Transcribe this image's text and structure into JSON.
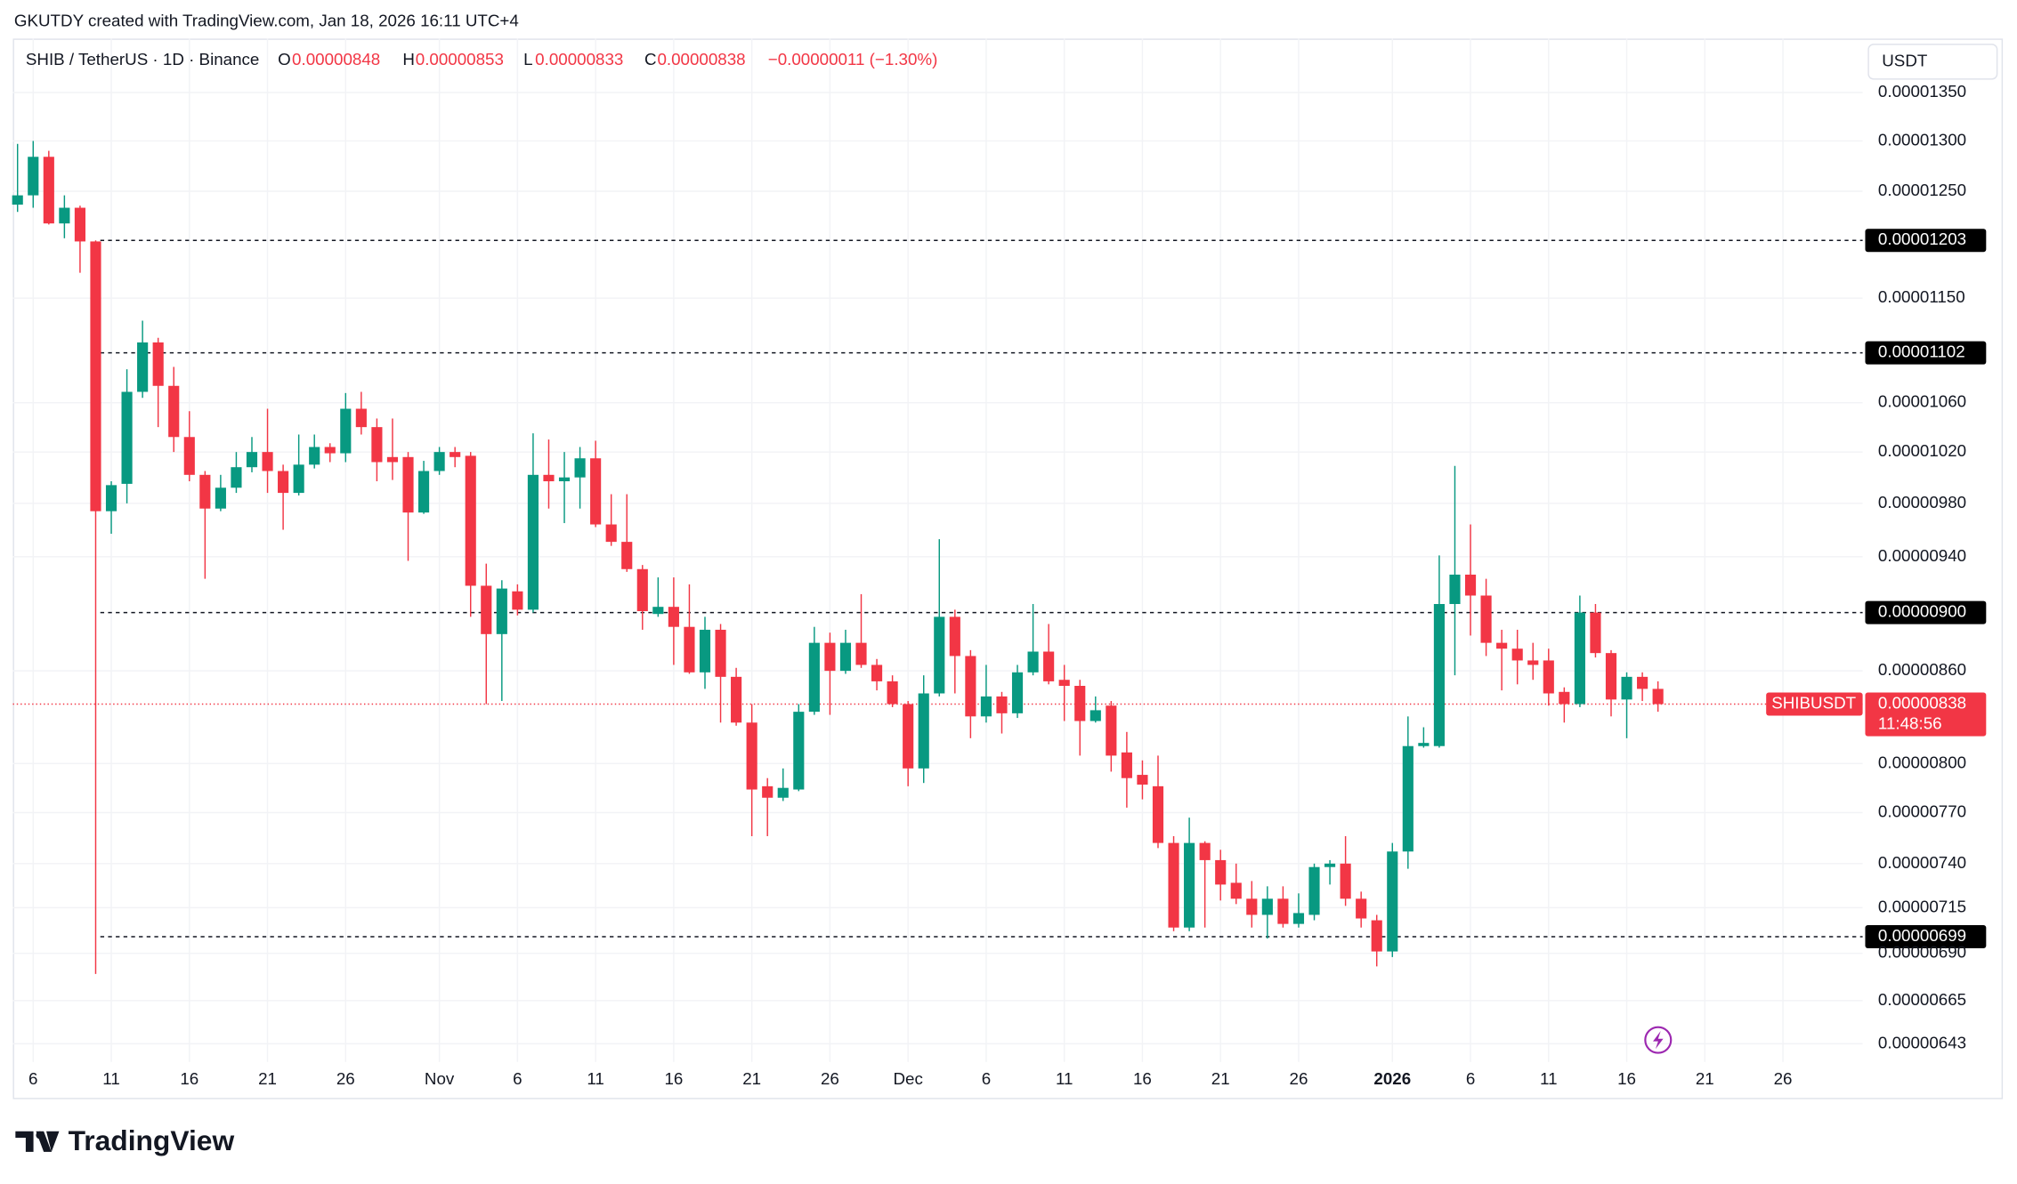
{
  "header": {
    "credit": "GKUTDY created with TradingView.com, Jan 18, 2026 16:11 UTC+4",
    "symbol": "SHIB / TetherUS · 1D · Binance",
    "o_label": "O",
    "o_value": "0.00000848",
    "h_label": "H",
    "h_value": "0.00000853",
    "l_label": "L",
    "l_value": "0.00000833",
    "c_label": "C",
    "c_value": "0.00000838",
    "change": "−0.00000011 (−1.30%)",
    "currency": "USDT"
  },
  "footer": {
    "brand": "TradingView"
  },
  "chart_data": {
    "type": "candlestick",
    "log_scale": true,
    "grid": true,
    "up_color": "#089981",
    "down_color": "#f23645",
    "xlim": [
      -0.3,
      118.1
    ],
    "ylim": [
      6.34e-06,
      1.408e-05
    ],
    "xticks": [
      {
        "value": 1,
        "label": "6"
      },
      {
        "value": 6,
        "label": "11"
      },
      {
        "value": 11,
        "label": "16"
      },
      {
        "value": 16,
        "label": "21"
      },
      {
        "value": 21,
        "label": "26"
      },
      {
        "value": 27,
        "label": "Nov"
      },
      {
        "value": 32,
        "label": "6"
      },
      {
        "value": 37,
        "label": "11"
      },
      {
        "value": 42,
        "label": "16"
      },
      {
        "value": 47,
        "label": "21"
      },
      {
        "value": 52,
        "label": "26"
      },
      {
        "value": 57,
        "label": "Dec"
      },
      {
        "value": 62,
        "label": "6"
      },
      {
        "value": 67,
        "label": "11"
      },
      {
        "value": 72,
        "label": "16"
      },
      {
        "value": 77,
        "label": "21"
      },
      {
        "value": 82,
        "label": "26"
      },
      {
        "value": 88,
        "label": "2026",
        "bold": true
      },
      {
        "value": 93,
        "label": "6"
      },
      {
        "value": 98,
        "label": "11"
      },
      {
        "value": 103,
        "label": "16"
      },
      {
        "value": 108,
        "label": "21"
      },
      {
        "value": 113,
        "label": "26"
      }
    ],
    "yticks": [
      {
        "value": 1.35e-05,
        "label": "0.00001350"
      },
      {
        "value": 1.3e-05,
        "label": "0.00001300"
      },
      {
        "value": 1.25e-05,
        "label": "0.00001250"
      },
      {
        "value": 1.15e-05,
        "label": "0.00001150"
      },
      {
        "value": 1.06e-05,
        "label": "0.00001060"
      },
      {
        "value": 1.02e-05,
        "label": "0.00001020"
      },
      {
        "value": 9.8e-06,
        "label": "0.00000980"
      },
      {
        "value": 9.4e-06,
        "label": "0.00000940"
      },
      {
        "value": 8.6e-06,
        "label": "0.00000860"
      },
      {
        "value": 8e-06,
        "label": "0.00000800"
      },
      {
        "value": 7.7e-06,
        "label": "0.00000770"
      },
      {
        "value": 7.4e-06,
        "label": "0.00000740"
      },
      {
        "value": 7.15e-06,
        "label": "0.00000715"
      },
      {
        "value": 6.9e-06,
        "label": "0.00000690"
      },
      {
        "value": 6.65e-06,
        "label": "0.00000665"
      },
      {
        "value": 6.43e-06,
        "label": "0.00000643"
      }
    ],
    "levels": [
      {
        "value": 1.203e-05,
        "label": "0.00001203"
      },
      {
        "value": 1.102e-05,
        "label": "0.00001102"
      },
      {
        "value": 9e-06,
        "label": "0.00000900"
      },
      {
        "value": 6.99e-06,
        "label": "0.00000699"
      }
    ],
    "last_price": {
      "value": 8.38e-06,
      "label": "0.00000838",
      "symbol": "SHIBUSDT",
      "countdown": "11:48:56"
    },
    "open": [
      1.237e-05,
      1.246e-05,
      1.284e-05,
      1.219e-05,
      1.234e-05,
      1.202e-05,
      9.74e-06,
      9.95e-06,
      1.069e-05,
      1.111e-05,
      1.074e-05,
      1.032e-05,
      1.002e-05,
      9.76e-06,
      9.92e-06,
      1.008e-05,
      1.02e-05,
      1.005e-05,
      9.88e-06,
      1.01e-05,
      1.024e-05,
      1.019e-05,
      1.055e-05,
      1.04e-05,
      1.016e-05,
      1.016e-05,
      9.73e-06,
      1.005e-05,
      1.02e-05,
      1.017e-05,
      9.19e-06,
      8.85e-06,
      9.15e-06,
      9.02e-06,
      1.002e-05,
      9.97e-06,
      1e-05,
      1.015e-05,
      9.64e-06,
      9.51e-06,
      9.31e-06,
      8.99e-06,
      9.04e-06,
      8.9e-06,
      8.59e-06,
      8.88e-06,
      8.56e-06,
      8.26e-06,
      7.86e-06,
      7.79e-06,
      7.84e-06,
      8.33e-06,
      8.79e-06,
      8.6e-06,
      8.79e-06,
      8.64e-06,
      8.53e-06,
      8.38e-06,
      7.97e-06,
      8.45e-06,
      8.97e-06,
      8.7e-06,
      8.3e-06,
      8.43e-06,
      8.32e-06,
      8.59e-06,
      8.73e-06,
      8.54e-06,
      8.5e-06,
      8.27e-06,
      8.37e-06,
      8.07e-06,
      7.93e-06,
      7.86e-06,
      7.52e-06,
      7.04e-06,
      7.52e-06,
      7.42e-06,
      7.29e-06,
      7.2e-06,
      7.11e-06,
      7.2e-06,
      7.06e-06,
      7.11e-06,
      7.38e-06,
      7.4e-06,
      7.2e-06,
      7.08e-06,
      6.91e-06,
      7.47e-06,
      8.11e-06,
      8.11e-06,
      9.06e-06,
      9.27e-06,
      9.12e-06,
      8.79e-06,
      8.75e-06,
      8.67e-06,
      8.67e-06,
      8.46e-06,
      8.38e-06,
      9e-06,
      8.72e-06,
      8.41e-06,
      8.56e-06,
      8.48e-06
    ],
    "high": [
      1.297e-05,
      1.3e-05,
      1.29e-05,
      1.246e-05,
      1.236e-05,
      1.203e-05,
      9.97e-06,
      1.088e-05,
      1.13e-05,
      1.115e-05,
      1.09e-05,
      1.053e-05,
      1.005e-05,
      1.002e-05,
      1.02e-05,
      1.032e-05,
      1.055e-05,
      1.01e-05,
      1.034e-05,
      1.034e-05,
      1.027e-05,
      1.068e-05,
      1.069e-05,
      1.047e-05,
      1.047e-05,
      1.02e-05,
      1.013e-05,
      1.024e-05,
      1.024e-05,
      1.02e-05,
      9.35e-06,
      9.23e-06,
      9.2e-06,
      1.035e-05,
      1.03e-05,
      1.02e-05,
      1.024e-05,
      1.029e-05,
      9.87e-06,
      9.87e-06,
      9.34e-06,
      9.25e-06,
      9.25e-06,
      9.2e-06,
      8.97e-06,
      8.92e-06,
      8.62e-06,
      8.38e-06,
      7.91e-06,
      7.97e-06,
      8.38e-06,
      8.9e-06,
      8.86e-06,
      8.88e-06,
      9.13e-06,
      8.68e-06,
      8.57e-06,
      8.4e-06,
      8.57e-06,
      9.53e-06,
      9.02e-06,
      8.74e-06,
      8.64e-06,
      8.46e-06,
      8.64e-06,
      9.06e-06,
      8.92e-06,
      8.64e-06,
      8.54e-06,
      8.43e-06,
      8.4e-06,
      8.2e-06,
      8.02e-06,
      8.05e-06,
      7.56e-06,
      7.67e-06,
      7.53e-06,
      7.48e-06,
      7.4e-06,
      7.3e-06,
      7.27e-06,
      7.27e-06,
      7.23e-06,
      7.4e-06,
      7.42e-06,
      7.56e-06,
      7.24e-06,
      7.11e-06,
      7.52e-06,
      8.3e-06,
      8.23e-06,
      9.41e-06,
      1.009e-05,
      9.64e-06,
      9.24e-06,
      8.88e-06,
      8.88e-06,
      8.79e-06,
      8.75e-06,
      8.49e-06,
      9.12e-06,
      9.06e-06,
      8.74e-06,
      8.59e-06,
      8.59e-06,
      8.53e-06
    ],
    "low": [
      1.23e-05,
      1.234e-05,
      1.218e-05,
      1.205e-05,
      1.173e-05,
      6.79e-06,
      9.57e-06,
      9.8e-06,
      1.064e-05,
      1.04e-05,
      1.02e-05,
      9.97e-06,
      9.24e-06,
      9.74e-06,
      9.88e-06,
      1.004e-05,
      9.88e-06,
      9.6e-06,
      9.86e-06,
      1.007e-05,
      1.012e-05,
      1.012e-05,
      1.034e-05,
      9.97e-06,
      9.98e-06,
      9.37e-06,
      9.72e-06,
      1.002e-05,
      1.008e-05,
      8.97e-06,
      8.38e-06,
      8.4e-06,
      8.98e-06,
      9e-06,
      9.76e-06,
      9.65e-06,
      9.76e-06,
      9.62e-06,
      9.48e-06,
      9.29e-06,
      8.88e-06,
      8.97e-06,
      8.64e-06,
      8.58e-06,
      8.48e-06,
      8.26e-06,
      8.24e-06,
      7.56e-06,
      7.56e-06,
      7.77e-06,
      7.83e-06,
      8.31e-06,
      8.31e-06,
      8.58e-06,
      8.62e-06,
      8.47e-06,
      8.36e-06,
      7.86e-06,
      7.88e-06,
      8.43e-06,
      8.45e-06,
      8.16e-06,
      8.26e-06,
      8.19e-06,
      8.29e-06,
      8.57e-06,
      8.51e-06,
      8.27e-06,
      8.05e-06,
      8.26e-06,
      7.95e-06,
      7.73e-06,
      7.78e-06,
      7.49e-06,
      7.02e-06,
      7.02e-06,
      7.04e-06,
      7.19e-06,
      7.17e-06,
      7.04e-06,
      6.98e-06,
      7.04e-06,
      7.04e-06,
      7.08e-06,
      7.28e-06,
      7.16e-06,
      7.04e-06,
      6.83e-06,
      6.88e-06,
      7.37e-06,
      8.1e-06,
      8.1e-06,
      8.57e-06,
      8.84e-06,
      8.7e-06,
      8.47e-06,
      8.51e-06,
      8.54e-06,
      8.37e-06,
      8.26e-06,
      8.36e-06,
      8.69e-06,
      8.3e-06,
      8.16e-06,
      8.4e-06,
      8.33e-06
    ],
    "close": [
      1.246e-05,
      1.284e-05,
      1.219e-05,
      1.234e-05,
      1.202e-05,
      9.74e-06,
      9.94e-06,
      1.069e-05,
      1.111e-05,
      1.074e-05,
      1.032e-05,
      1.002e-05,
      9.76e-06,
      9.92e-06,
      1.008e-05,
      1.02e-05,
      1.005e-05,
      9.88e-06,
      1.01e-05,
      1.024e-05,
      1.019e-05,
      1.055e-05,
      1.04e-05,
      1.012e-05,
      1.012e-05,
      9.73e-06,
      1.005e-05,
      1.02e-05,
      1.016e-05,
      9.19e-06,
      8.85e-06,
      9.17e-06,
      9.02e-06,
      1.002e-05,
      9.97e-06,
      1e-05,
      1.015e-05,
      9.64e-06,
      9.51e-06,
      9.31e-06,
      9.01e-06,
      9.04e-06,
      8.9e-06,
      8.59e-06,
      8.88e-06,
      8.56e-06,
      8.26e-06,
      7.84e-06,
      7.79e-06,
      7.85e-06,
      8.33e-06,
      8.79e-06,
      8.6e-06,
      8.79e-06,
      8.64e-06,
      8.53e-06,
      8.38e-06,
      7.97e-06,
      8.45e-06,
      8.97e-06,
      8.7e-06,
      8.3e-06,
      8.43e-06,
      8.32e-06,
      8.59e-06,
      8.73e-06,
      8.53e-06,
      8.5e-06,
      8.27e-06,
      8.34e-06,
      8.05e-06,
      7.91e-06,
      7.87e-06,
      7.52e-06,
      7.04e-06,
      7.52e-06,
      7.42e-06,
      7.28e-06,
      7.2e-06,
      7.11e-06,
      7.2e-06,
      7.06e-06,
      7.12e-06,
      7.38e-06,
      7.4e-06,
      7.2e-06,
      7.09e-06,
      6.91e-06,
      7.47e-06,
      8.11e-06,
      8.13e-06,
      9.06e-06,
      9.27e-06,
      9.12e-06,
      8.79e-06,
      8.75e-06,
      8.67e-06,
      8.64e-06,
      8.45e-06,
      8.38e-06,
      9e-06,
      8.72e-06,
      8.41e-06,
      8.56e-06,
      8.48e-06,
      8.38e-06
    ]
  }
}
